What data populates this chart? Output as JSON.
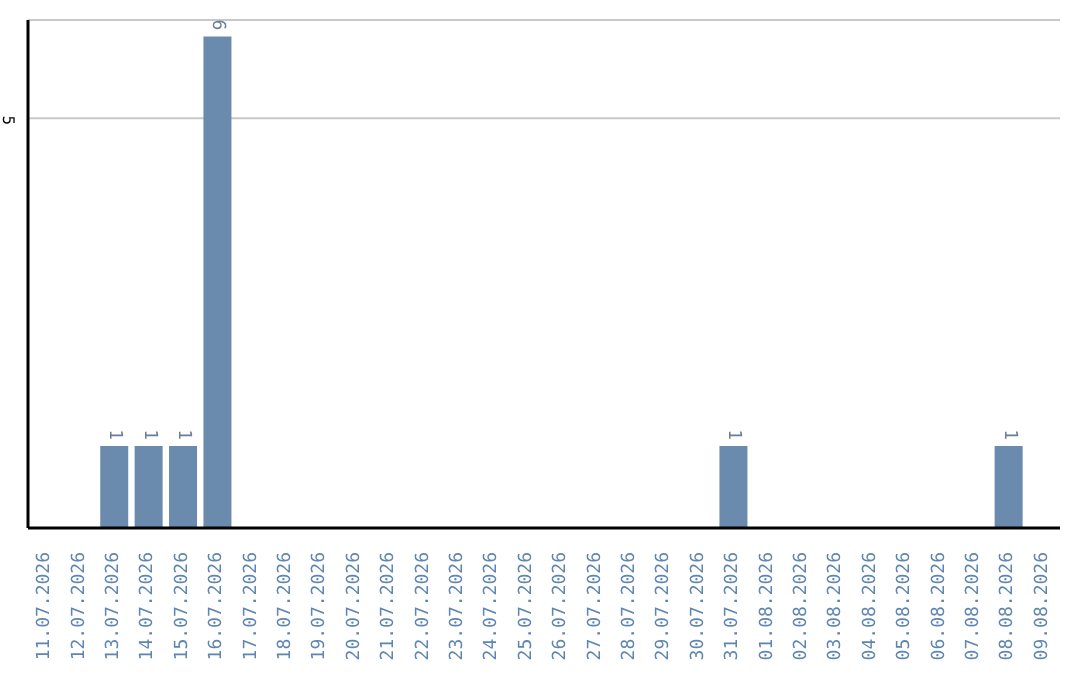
{
  "chart_data": {
    "type": "bar",
    "categories": [
      "11.07.2026",
      "12.07.2026",
      "13.07.2026",
      "14.07.2026",
      "15.07.2026",
      "16.07.2026",
      "17.07.2026",
      "18.07.2026",
      "19.07.2026",
      "20.07.2026",
      "21.07.2026",
      "22.07.2026",
      "23.07.2026",
      "24.07.2026",
      "25.07.2026",
      "26.07.2026",
      "27.07.2026",
      "28.07.2026",
      "29.07.2026",
      "30.07.2026",
      "31.07.2026",
      "01.08.2026",
      "02.08.2026",
      "03.08.2026",
      "04.08.2026",
      "05.08.2026",
      "06.08.2026",
      "07.08.2026",
      "08.08.2026",
      "09.08.2026"
    ],
    "values": [
      0,
      0,
      1,
      1,
      1,
      6,
      0,
      0,
      0,
      0,
      0,
      0,
      0,
      0,
      0,
      0,
      0,
      0,
      0,
      0,
      1,
      0,
      0,
      0,
      0,
      0,
      0,
      0,
      1,
      0
    ],
    "color": "#6a8bad",
    "value_labels": [
      null,
      null,
      "1",
      "1",
      "1",
      "6",
      null,
      null,
      null,
      null,
      null,
      null,
      null,
      null,
      null,
      null,
      null,
      null,
      null,
      null,
      "1",
      null,
      null,
      null,
      null,
      null,
      null,
      null,
      "1",
      null
    ],
    "ylim": [
      0,
      6.2
    ],
    "yticks": [
      5
    ],
    "grid": "y"
  }
}
